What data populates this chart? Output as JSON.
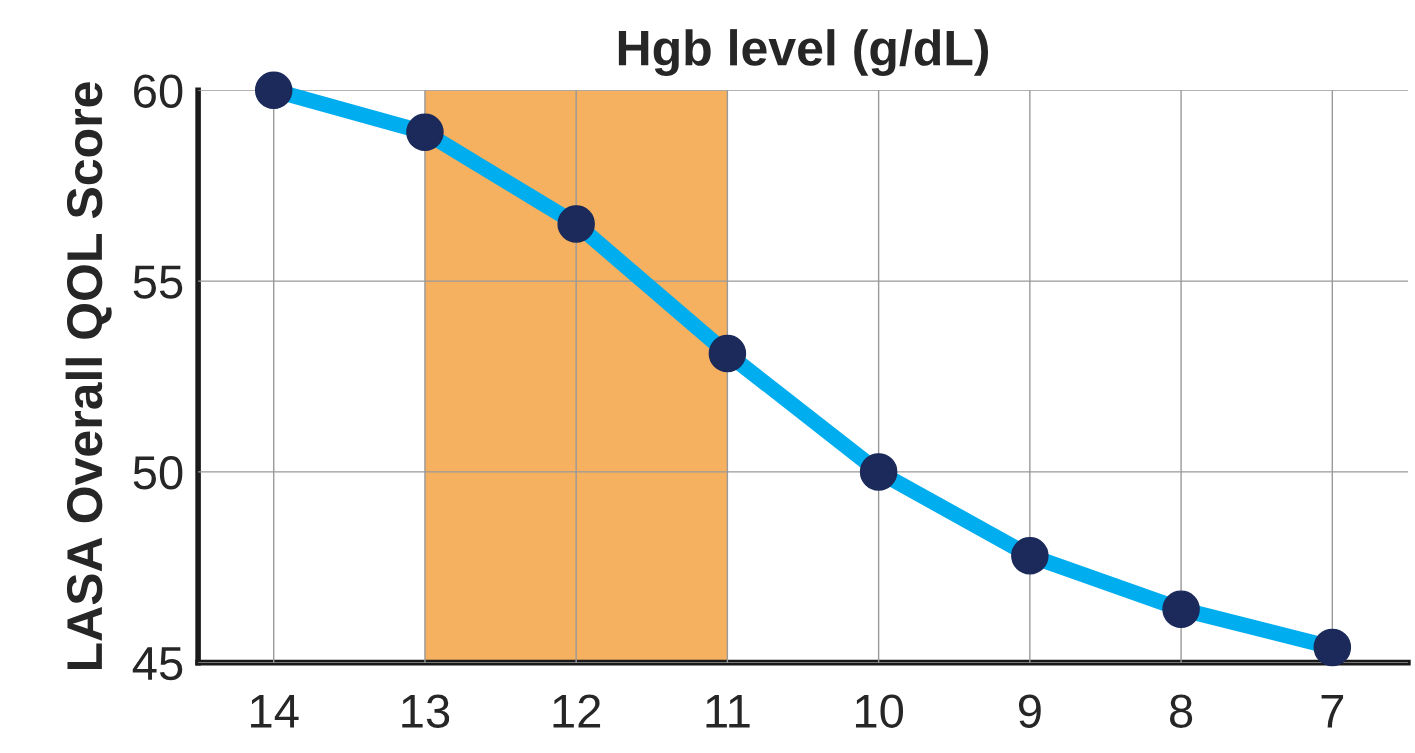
{
  "chart_data": {
    "type": "line",
    "xlabel": "Hgb level (g/dL)",
    "ylabel": "LASA Overall QOL Score",
    "x": [
      14,
      13,
      12,
      11,
      10,
      9,
      8,
      7
    ],
    "series": [
      {
        "color": "#00adef",
        "values": [
          60.0,
          58.9,
          56.5,
          53.1,
          50.0,
          47.8,
          46.4,
          45.4
        ]
      }
    ],
    "marker": "circle",
    "line_style": "solid",
    "xlim": [
      14.5,
      6.5
    ],
    "xticks": [
      14,
      13,
      12,
      11,
      10,
      9,
      8,
      7
    ],
    "ylim": [
      45,
      60
    ],
    "yticks": [
      45,
      50,
      55,
      60
    ],
    "grid": true,
    "bands": [
      {
        "axis": "x",
        "from": 13,
        "to": 11,
        "color": "#f5b060"
      }
    ]
  }
}
